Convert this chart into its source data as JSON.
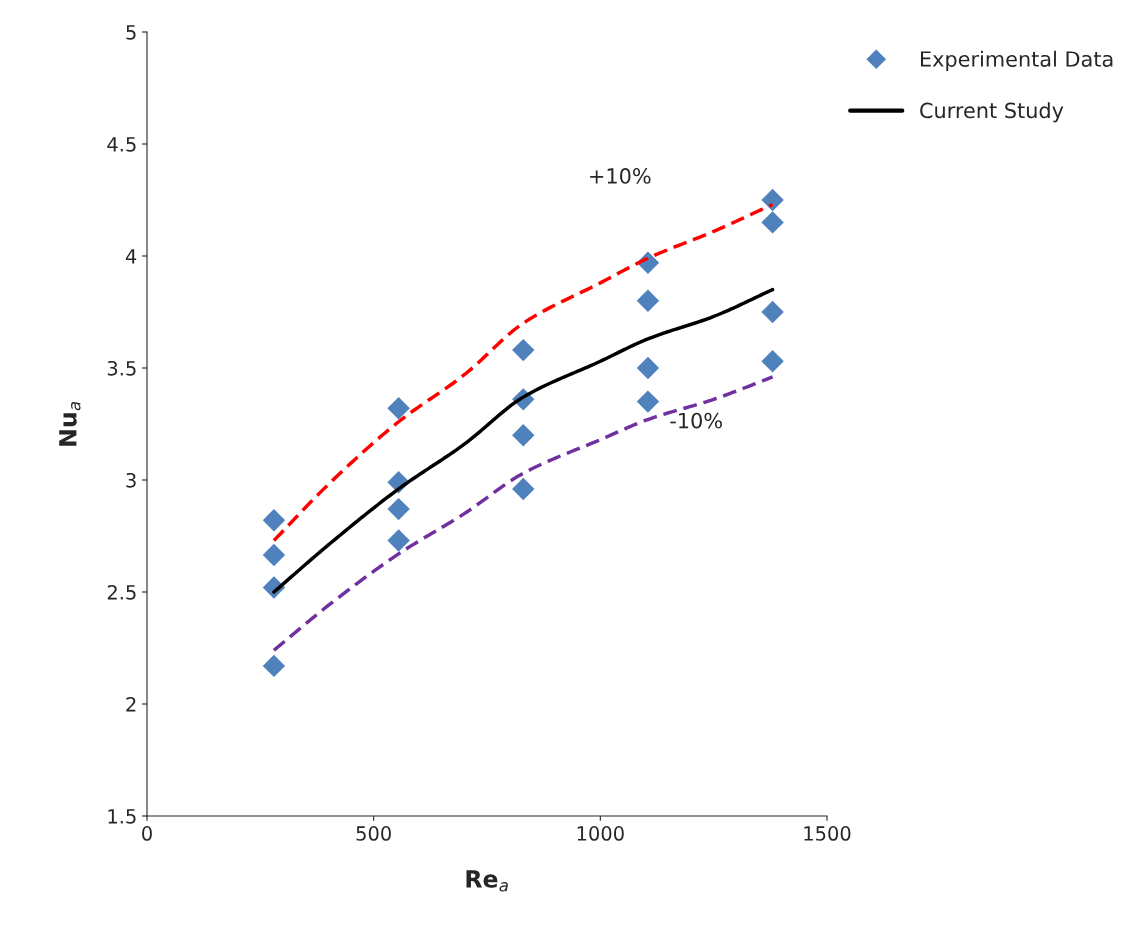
{
  "chart_data": {
    "type": "scatter",
    "xlabel": "Re$_{a}$",
    "ylabel": "Nu$_{a}$",
    "xlim": [
      0,
      1500
    ],
    "xticks": [
      0,
      500,
      1000,
      1500
    ],
    "ylim": [
      1.5,
      5
    ],
    "yticks": [
      1.5,
      2,
      2.5,
      3,
      3.5,
      4,
      4.5,
      5
    ],
    "grid": false,
    "legend": "top right",
    "series": [
      {
        "name": "Experimental Data",
        "marker": "diamond",
        "color": "#4f81bd",
        "x": [
          280,
          280,
          280,
          280,
          555,
          555,
          555,
          555,
          830,
          830,
          830,
          830,
          1105,
          1105,
          1105,
          1105,
          1380,
          1380,
          1380,
          1380
        ],
        "values": [
          2.82,
          2.665,
          2.52,
          2.17,
          3.32,
          2.99,
          2.87,
          2.73,
          3.58,
          3.36,
          3.2,
          2.96,
          3.97,
          3.8,
          3.5,
          3.35,
          4.25,
          4.15,
          3.75,
          3.53
        ]
      },
      {
        "name": "Current Study",
        "type": "line",
        "line_style": "solid",
        "marker": "none",
        "color": "#000000",
        "x": [
          280,
          400,
          555,
          700,
          830,
          1000,
          1105,
          1250,
          1380
        ],
        "values": [
          2.5,
          2.71,
          2.96,
          3.16,
          3.37,
          3.53,
          3.63,
          3.73,
          3.85
        ]
      },
      {
        "type": "line",
        "line_style": "dashed",
        "marker": "none",
        "color": "#ff0000",
        "x": [
          280,
          400,
          555,
          700,
          830,
          1000,
          1105,
          1250,
          1380
        ],
        "values": [
          2.73,
          2.98,
          3.26,
          3.47,
          3.7,
          3.88,
          3.99,
          4.11,
          4.23
        ]
      },
      {
        "type": "line",
        "line_style": "dashed",
        "marker": "none",
        "color": "#7030a0",
        "x": [
          280,
          400,
          555,
          700,
          830,
          1000,
          1105,
          1250,
          1380
        ],
        "values": [
          2.24,
          2.44,
          2.67,
          2.85,
          3.03,
          3.18,
          3.27,
          3.36,
          3.46
        ]
      }
    ],
    "annotations": [
      "+10%",
      "-10%"
    ]
  }
}
